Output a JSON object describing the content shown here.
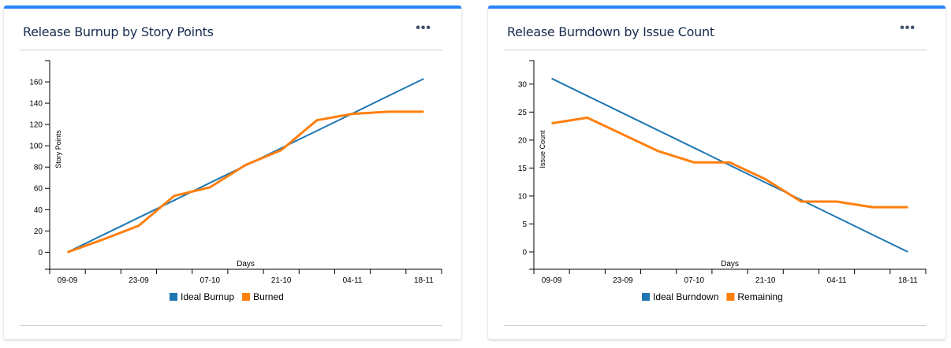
{
  "colors": {
    "ideal": "#1f77b4",
    "actual": "#ff7f0e",
    "accent": "#2684ff"
  },
  "menu_icon": "more-horizontal-icon",
  "chart_data": [
    {
      "type": "line",
      "title": "Release Burnup by Story Points",
      "xlabel": "Days",
      "ylabel": "Story Points",
      "x": [
        "09-09",
        "16-09",
        "23-09",
        "30-09",
        "07-10",
        "14-10",
        "21-10",
        "28-10",
        "04-11",
        "11-11",
        "18-11"
      ],
      "x_tick_labels": [
        "09-09",
        "23-09",
        "07-10",
        "21-10",
        "04-11",
        "18-11"
      ],
      "y_ticks": [
        0,
        20,
        40,
        60,
        80,
        100,
        120,
        140,
        160
      ],
      "ylim": [
        -16,
        180
      ],
      "grid": false,
      "legend_placement": "bottom",
      "series": [
        {
          "name": "Ideal Burnup",
          "values": [
            0,
            16.3,
            32.6,
            48.9,
            65.2,
            81.5,
            97.8,
            114.1,
            130.4,
            146.7,
            163
          ]
        },
        {
          "name": "Burned",
          "values": [
            0,
            12,
            25,
            53,
            61,
            82,
            96,
            124,
            130,
            132,
            132
          ]
        }
      ]
    },
    {
      "type": "line",
      "title": "Release Burndown by Issue Count",
      "xlabel": "Days",
      "ylabel": "Issue Count",
      "x": [
        "09-09",
        "16-09",
        "23-09",
        "30-09",
        "07-10",
        "14-10",
        "21-10",
        "28-10",
        "04-11",
        "11-11",
        "18-11"
      ],
      "x_tick_labels": [
        "09-09",
        "23-09",
        "07-10",
        "21-10",
        "04-11",
        "18-11"
      ],
      "y_ticks": [
        0,
        5,
        10,
        15,
        20,
        25,
        30
      ],
      "ylim": [
        -3.1,
        34.2
      ],
      "grid": false,
      "legend_placement": "bottom",
      "series": [
        {
          "name": "Ideal Burndown",
          "values": [
            31,
            27.9,
            24.8,
            21.7,
            18.6,
            15.5,
            12.4,
            9.3,
            6.2,
            3.1,
            0
          ]
        },
        {
          "name": "Remaining",
          "values": [
            23,
            24,
            21,
            18,
            16,
            16,
            13,
            9,
            9,
            8,
            8
          ]
        }
      ]
    }
  ]
}
